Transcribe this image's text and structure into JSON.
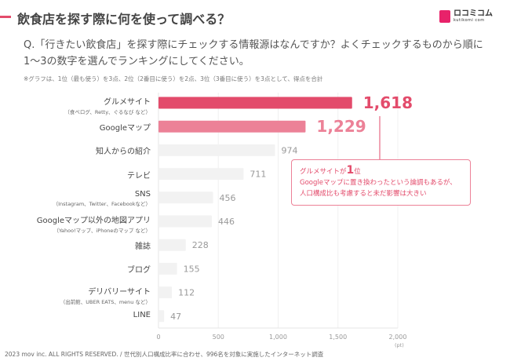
{
  "header": {
    "title": "飲食店を探す際に何を使って調べる？",
    "logo_text": "ロコミコム",
    "logo_sub": "kutikomi com"
  },
  "question": "Q.「行きたい飲食店」を探す際にチェックする情報源はなんですか？よくチェックするものから順に1〜3の数字を選んでランキングにしてください。",
  "note": "※グラフは、1位（最も使う）を3点、2位（2番目に使う）を2点、3位（3番目に使う）を3点として、得点を合計",
  "callout": {
    "line1_pre": "グルメサイトが",
    "line1_num": "1",
    "line1_post": "位",
    "line2": "Googleマップに置き換わったという論調もあるが、",
    "line3": "人口構成比も考慮すると未だ影響は大きい"
  },
  "footer": "2023 mov inc. ALL RIGHTS RESERVED. / 世代別人口構成比率に合わせ、996名を対象に実施したインターネット調査",
  "colors": {
    "first": "#e34b6b",
    "second": "#ec8197",
    "other": "#f2f2f2",
    "accent": "#e34b6b"
  },
  "chart_data": {
    "type": "bar",
    "orientation": "horizontal",
    "categories": [
      "グルメサイト",
      "Googleマップ",
      "知人からの紹介",
      "テレビ",
      "SNS",
      "Googleマップ以外の地図アプリ",
      "雑誌",
      "ブログ",
      "デリバリーサイト",
      "LINE"
    ],
    "subcategories": [
      "（食べログ、Retty、ぐるなび など）",
      "",
      "",
      "",
      "（Instagram、Twitter、Facebookなど）",
      "（Yahoo!マップ、iPhoneのマップ など）",
      "",
      "",
      "（出前館、UBER EATS、menu など）",
      ""
    ],
    "values": [
      1618,
      1229,
      974,
      711,
      456,
      446,
      228,
      155,
      112,
      47
    ],
    "value_labels": [
      "1,618",
      "1,229",
      "974",
      "711",
      "456",
      "446",
      "228",
      "155",
      "112",
      "47"
    ],
    "xlim": [
      0,
      2000
    ],
    "xticks": [
      "0",
      "500",
      "1,000",
      "1,500",
      "2,000"
    ],
    "xtick_values": [
      0,
      500,
      1000,
      1500,
      2000
    ],
    "xunit": "(pt)",
    "grid": true
  }
}
